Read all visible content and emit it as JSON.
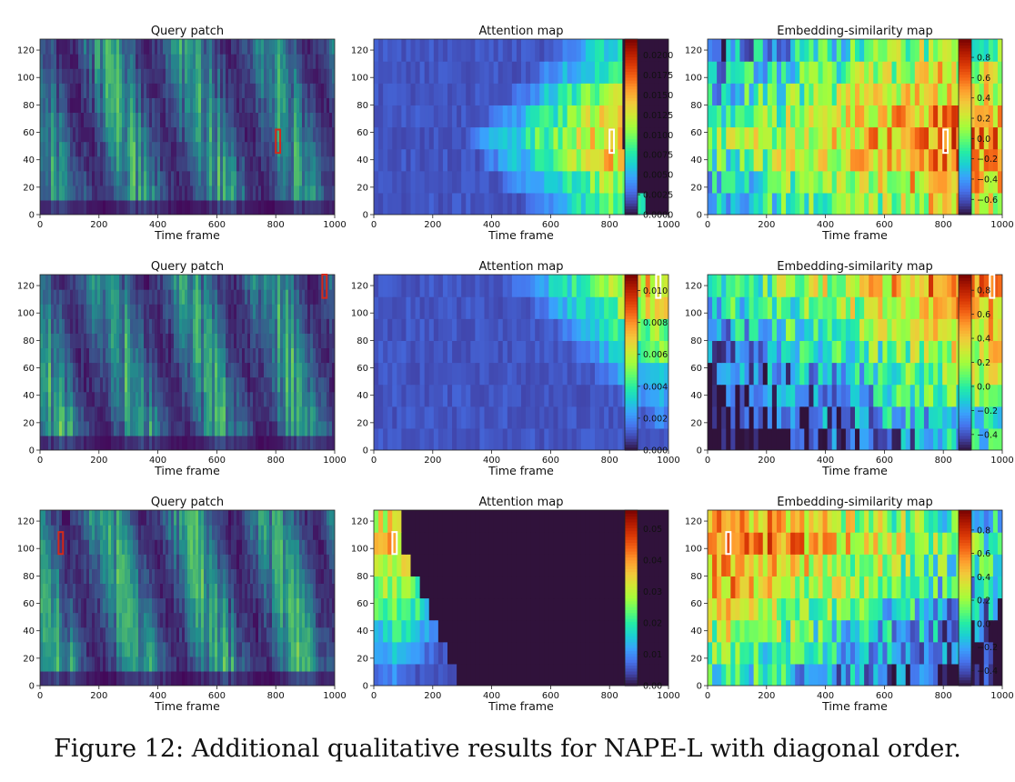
{
  "caption": "Figure 12: Additional qualitative results for NAPE-L with diagonal order.",
  "colors": {
    "viridis": [
      "#440154",
      "#3b528b",
      "#21918c",
      "#5ec962",
      "#fde725"
    ],
    "turbo": [
      "#30123b",
      "#4145ab",
      "#4675ed",
      "#39a2fc",
      "#1bcfd4",
      "#24eca6",
      "#61fc6c",
      "#a4fc3b",
      "#d1e834",
      "#f3c63a",
      "#fe9b2d",
      "#f36315",
      "#d93806",
      "#b11901",
      "#7a0402"
    ],
    "query_box": "#d42a1a",
    "map_box": "#ffffff"
  },
  "chart_data": [
    {
      "type": "heatmap",
      "title": "Query patch",
      "xlabel": "Time frame",
      "x_ticks": [
        "0",
        "200",
        "400",
        "600",
        "800",
        "1000"
      ],
      "y_ticks": [
        "0",
        "20",
        "40",
        "60",
        "80",
        "100",
        "120"
      ],
      "xlim": [
        0,
        1000
      ],
      "ylim": [
        0,
        128
      ],
      "colormap": "viridis",
      "has_colorbar": false,
      "highlight": {
        "x": [
          800,
          815
        ],
        "y": [
          45,
          62
        ]
      }
    },
    {
      "type": "heatmap",
      "title": "Attention map",
      "xlabel": "Time frame",
      "x_ticks": [
        "0",
        "200",
        "400",
        "600",
        "800",
        "1000"
      ],
      "y_ticks": [
        "0",
        "20",
        "40",
        "60",
        "80",
        "100",
        "120"
      ],
      "xlim": [
        0,
        1000
      ],
      "ylim": [
        0,
        128
      ],
      "colormap": "turbo",
      "has_colorbar": true,
      "colorbar_ticks": [
        "0.0000",
        "0.0025",
        "0.0050",
        "0.0075",
        "0.0100",
        "0.0125",
        "0.0150",
        "0.0175",
        "0.0200"
      ],
      "colorbar_range": [
        0,
        0.022
      ],
      "highlight": {
        "x": [
          800,
          815
        ],
        "y": [
          45,
          62
        ]
      }
    },
    {
      "type": "heatmap",
      "title": "Embedding-similarity map",
      "xlabel": "Time frame",
      "x_ticks": [
        "0",
        "200",
        "400",
        "600",
        "800",
        "1000"
      ],
      "y_ticks": [
        "0",
        "20",
        "40",
        "60",
        "80",
        "100",
        "120"
      ],
      "xlim": [
        0,
        1000
      ],
      "ylim": [
        0,
        128
      ],
      "colormap": "turbo",
      "has_colorbar": true,
      "colorbar_ticks": [
        "−0.6",
        "−0.4",
        "−0.2",
        "0.0",
        "0.2",
        "0.4",
        "0.6",
        "0.8"
      ],
      "colorbar_range": [
        -0.75,
        0.98
      ],
      "highlight": {
        "x": [
          800,
          815
        ],
        "y": [
          45,
          62
        ]
      }
    },
    {
      "type": "heatmap",
      "title": "Query patch",
      "xlabel": "Time frame",
      "x_ticks": [
        "0",
        "200",
        "400",
        "600",
        "800",
        "1000"
      ],
      "y_ticks": [
        "0",
        "20",
        "40",
        "60",
        "80",
        "100",
        "120"
      ],
      "xlim": [
        0,
        1000
      ],
      "ylim": [
        0,
        128
      ],
      "colormap": "viridis",
      "has_colorbar": false,
      "highlight": {
        "x": [
          958,
          973
        ],
        "y": [
          111,
          128
        ]
      }
    },
    {
      "type": "heatmap",
      "title": "Attention map",
      "xlabel": "Time frame",
      "x_ticks": [
        "0",
        "200",
        "400",
        "600",
        "800",
        "1000"
      ],
      "y_ticks": [
        "0",
        "20",
        "40",
        "60",
        "80",
        "100",
        "120"
      ],
      "xlim": [
        0,
        1000
      ],
      "ylim": [
        0,
        128
      ],
      "colormap": "turbo",
      "has_colorbar": true,
      "colorbar_ticks": [
        "0.000",
        "0.002",
        "0.004",
        "0.006",
        "0.008",
        "0.010"
      ],
      "colorbar_range": [
        0,
        0.011
      ],
      "highlight": {
        "x": [
          958,
          973
        ],
        "y": [
          111,
          128
        ]
      }
    },
    {
      "type": "heatmap",
      "title": "Embedding-similarity map",
      "xlabel": "Time frame",
      "x_ticks": [
        "0",
        "200",
        "400",
        "600",
        "800",
        "1000"
      ],
      "y_ticks": [
        "0",
        "20",
        "40",
        "60",
        "80",
        "100",
        "120"
      ],
      "xlim": [
        0,
        1000
      ],
      "ylim": [
        0,
        128
      ],
      "colormap": "turbo",
      "has_colorbar": true,
      "colorbar_ticks": [
        "−0.4",
        "−0.2",
        "0.0",
        "0.2",
        "0.4",
        "0.6",
        "0.8"
      ],
      "colorbar_range": [
        -0.53,
        0.93
      ],
      "highlight": {
        "x": [
          958,
          973
        ],
        "y": [
          111,
          128
        ]
      }
    },
    {
      "type": "heatmap",
      "title": "Query patch",
      "xlabel": "Time frame",
      "x_ticks": [
        "0",
        "200",
        "400",
        "600",
        "800",
        "1000"
      ],
      "y_ticks": [
        "0",
        "20",
        "40",
        "60",
        "80",
        "100",
        "120"
      ],
      "xlim": [
        0,
        1000
      ],
      "ylim": [
        0,
        128
      ],
      "colormap": "viridis",
      "has_colorbar": false,
      "highlight": {
        "x": [
          63,
          78
        ],
        "y": [
          96,
          112
        ]
      }
    },
    {
      "type": "heatmap",
      "title": "Attention map",
      "xlabel": "Time frame",
      "x_ticks": [
        "0",
        "200",
        "400",
        "600",
        "800",
        "1000"
      ],
      "y_ticks": [
        "0",
        "20",
        "40",
        "60",
        "80",
        "100",
        "120"
      ],
      "xlim": [
        0,
        1000
      ],
      "ylim": [
        0,
        128
      ],
      "colormap": "turbo",
      "has_colorbar": true,
      "colorbar_ticks": [
        "0.00",
        "0.01",
        "0.02",
        "0.03",
        "0.04",
        "0.05"
      ],
      "colorbar_range": [
        0,
        0.056
      ],
      "highlight": {
        "x": [
          63,
          78
        ],
        "y": [
          96,
          112
        ]
      }
    },
    {
      "type": "heatmap",
      "title": "Embedding-similarity map",
      "xlabel": "Time frame",
      "x_ticks": [
        "0",
        "200",
        "400",
        "600",
        "800",
        "1000"
      ],
      "y_ticks": [
        "0",
        "20",
        "40",
        "60",
        "80",
        "100",
        "120"
      ],
      "xlim": [
        0,
        1000
      ],
      "ylim": [
        0,
        128
      ],
      "colormap": "turbo",
      "has_colorbar": true,
      "colorbar_ticks": [
        "−0.4",
        "−0.2",
        "0.0",
        "0.2",
        "0.4",
        "0.6",
        "0.8"
      ],
      "colorbar_range": [
        -0.53,
        0.97
      ],
      "highlight": {
        "x": [
          63,
          78
        ],
        "y": [
          96,
          112
        ]
      }
    }
  ]
}
